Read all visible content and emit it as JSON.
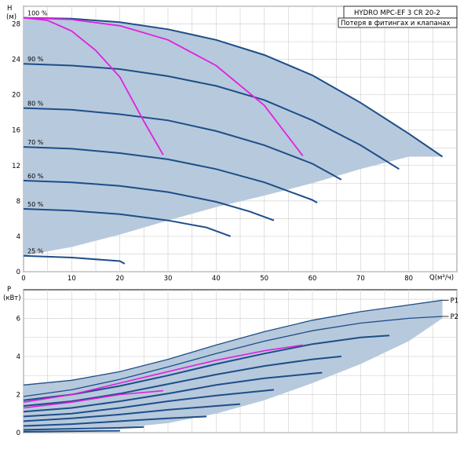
{
  "chart_data": [
    {
      "type": "line",
      "title": "HYDRO MPC-EF 3 CR 20-2",
      "legend": "Потеря в фитингах и клапанах",
      "legend_placement": "top-right",
      "ylabel_line1": "H",
      "ylabel_line2": "(м)",
      "xlabel": "Q(м³/ч)",
      "xlim": [
        0,
        90
      ],
      "ylim": [
        0,
        30
      ],
      "x_ticks": [
        0,
        10,
        20,
        30,
        40,
        50,
        60,
        70,
        80
      ],
      "y_ticks": [
        0,
        4,
        8,
        12,
        16,
        20,
        24,
        28
      ],
      "grid": true,
      "colors": {
        "curve": "#1d4e89",
        "loss": "#e020e0",
        "area": "#b7c9dc"
      },
      "envelope": [
        [
          0,
          1.8
        ],
        [
          10,
          2.8
        ],
        [
          20,
          4.2
        ],
        [
          30,
          5.8
        ],
        [
          40,
          7.3
        ],
        [
          50,
          8.6
        ],
        [
          60,
          10.0
        ],
        [
          70,
          11.6
        ],
        [
          80,
          13.0
        ],
        [
          87,
          13.0
        ],
        [
          80,
          15.6
        ],
        [
          70,
          19.1
        ],
        [
          60,
          22.2
        ],
        [
          50,
          24.5
        ],
        [
          40,
          26.2
        ],
        [
          30,
          27.4
        ],
        [
          20,
          28.2
        ],
        [
          10,
          28.6
        ],
        [
          0,
          28.7
        ]
      ],
      "series": [
        {
          "label": "100 %",
          "points": [
            [
              0,
              28.7
            ],
            [
              10,
              28.6
            ],
            [
              20,
              28.2
            ],
            [
              30,
              27.4
            ],
            [
              40,
              26.2
            ],
            [
              50,
              24.5
            ],
            [
              60,
              22.2
            ],
            [
              70,
              19.1
            ],
            [
              80,
              15.6
            ],
            [
              87,
              13.0
            ]
          ]
        },
        {
          "label": "90 %",
          "points": [
            [
              0,
              23.5
            ],
            [
              10,
              23.3
            ],
            [
              20,
              22.9
            ],
            [
              30,
              22.1
            ],
            [
              40,
              21.0
            ],
            [
              50,
              19.4
            ],
            [
              60,
              17.1
            ],
            [
              70,
              14.3
            ],
            [
              78,
              11.6
            ]
          ]
        },
        {
          "label": "80 %",
          "points": [
            [
              0,
              18.5
            ],
            [
              10,
              18.3
            ],
            [
              20,
              17.8
            ],
            [
              30,
              17.1
            ],
            [
              40,
              15.9
            ],
            [
              50,
              14.3
            ],
            [
              60,
              12.2
            ],
            [
              66,
              10.4
            ]
          ]
        },
        {
          "label": "70 %",
          "points": [
            [
              0,
              14.1
            ],
            [
              10,
              13.9
            ],
            [
              20,
              13.4
            ],
            [
              30,
              12.7
            ],
            [
              40,
              11.6
            ],
            [
              50,
              10.1
            ],
            [
              60,
              8.1
            ],
            [
              61,
              7.8
            ]
          ]
        },
        {
          "label": "60 %",
          "points": [
            [
              0,
              10.3
            ],
            [
              10,
              10.1
            ],
            [
              20,
              9.7
            ],
            [
              30,
              9.0
            ],
            [
              40,
              7.9
            ],
            [
              47,
              6.8
            ],
            [
              52,
              5.8
            ]
          ]
        },
        {
          "label": "50 %",
          "points": [
            [
              0,
              7.1
            ],
            [
              10,
              6.9
            ],
            [
              20,
              6.5
            ],
            [
              30,
              5.8
            ],
            [
              38,
              5.0
            ],
            [
              43,
              4.0
            ]
          ]
        },
        {
          "label": "25 %",
          "points": [
            [
              0,
              1.8
            ],
            [
              10,
              1.6
            ],
            [
              20,
              1.2
            ],
            [
              21,
              0.9
            ]
          ]
        }
      ],
      "loss_curves": [
        {
          "points": [
            [
              0,
              28.7
            ],
            [
              5,
              28.4
            ],
            [
              10,
              27.2
            ],
            [
              15,
              25.0
            ],
            [
              20,
              22.0
            ],
            [
              25,
              17.0
            ],
            [
              29,
              13.2
            ]
          ]
        },
        {
          "points": [
            [
              0,
              28.7
            ],
            [
              10,
              28.5
            ],
            [
              20,
              27.8
            ],
            [
              30,
              26.2
            ],
            [
              40,
              23.3
            ],
            [
              50,
              18.8
            ],
            [
              58,
              13.1
            ]
          ]
        }
      ]
    },
    {
      "type": "line",
      "ylabel_line1": "P",
      "ylabel_line2": "(кВт)",
      "xlim": [
        0,
        90
      ],
      "ylim": [
        0,
        7.5
      ],
      "y_ticks": [
        0,
        2,
        4,
        6
      ],
      "grid": true,
      "envelope": [
        [
          0,
          0.1
        ],
        [
          10,
          0.15
        ],
        [
          20,
          0.25
        ],
        [
          30,
          0.5
        ],
        [
          40,
          1.0
        ],
        [
          50,
          1.7
        ],
        [
          60,
          2.6
        ],
        [
          70,
          3.6
        ],
        [
          80,
          4.8
        ],
        [
          87,
          6.0
        ],
        [
          87,
          6.95
        ],
        [
          80,
          6.7
        ],
        [
          70,
          6.35
        ],
        [
          60,
          5.9
        ],
        [
          50,
          5.3
        ],
        [
          40,
          4.6
        ],
        [
          30,
          3.85
        ],
        [
          20,
          3.2
        ],
        [
          10,
          2.75
        ],
        [
          0,
          2.5
        ]
      ],
      "series": [
        {
          "label": "P1",
          "points": [
            [
              0,
              2.5
            ],
            [
              10,
              2.75
            ],
            [
              20,
              3.2
            ],
            [
              30,
              3.85
            ],
            [
              40,
              4.6
            ],
            [
              50,
              5.3
            ],
            [
              60,
              5.9
            ],
            [
              70,
              6.35
            ],
            [
              80,
              6.7
            ],
            [
              87,
              6.95
            ]
          ]
        },
        {
          "label": "P2",
          "points": [
            [
              0,
              1.9
            ],
            [
              10,
              2.25
            ],
            [
              20,
              2.8
            ],
            [
              30,
              3.45
            ],
            [
              40,
              4.15
            ],
            [
              50,
              4.8
            ],
            [
              60,
              5.35
            ],
            [
              70,
              5.75
            ],
            [
              80,
              6.0
            ],
            [
              87,
              6.1
            ]
          ]
        },
        {
          "points": [
            [
              0,
              1.7
            ],
            [
              10,
              2.0
            ],
            [
              20,
              2.45
            ],
            [
              30,
              3.0
            ],
            [
              40,
              3.6
            ],
            [
              50,
              4.15
            ],
            [
              60,
              4.65
            ],
            [
              70,
              5.0
            ],
            [
              76,
              5.1
            ]
          ]
        },
        {
          "points": [
            [
              0,
              1.4
            ],
            [
              10,
              1.65
            ],
            [
              20,
              2.05
            ],
            [
              30,
              2.55
            ],
            [
              40,
              3.05
            ],
            [
              50,
              3.5
            ],
            [
              60,
              3.85
            ],
            [
              66,
              4.0
            ]
          ]
        },
        {
          "points": [
            [
              0,
              1.1
            ],
            [
              10,
              1.3
            ],
            [
              20,
              1.65
            ],
            [
              30,
              2.05
            ],
            [
              40,
              2.5
            ],
            [
              50,
              2.85
            ],
            [
              60,
              3.1
            ],
            [
              62,
              3.15
            ]
          ]
        },
        {
          "points": [
            [
              0,
              0.85
            ],
            [
              10,
              1.0
            ],
            [
              20,
              1.3
            ],
            [
              30,
              1.65
            ],
            [
              40,
              1.95
            ],
            [
              50,
              2.2
            ],
            [
              52,
              2.25
            ]
          ]
        },
        {
          "points": [
            [
              0,
              0.6
            ],
            [
              10,
              0.75
            ],
            [
              20,
              0.95
            ],
            [
              30,
              1.2
            ],
            [
              40,
              1.4
            ],
            [
              45,
              1.5
            ]
          ]
        },
        {
          "points": [
            [
              0,
              0.35
            ],
            [
              10,
              0.45
            ],
            [
              20,
              0.6
            ],
            [
              30,
              0.75
            ],
            [
              38,
              0.85
            ]
          ]
        },
        {
          "points": [
            [
              0,
              0.15
            ],
            [
              10,
              0.2
            ],
            [
              20,
              0.25
            ],
            [
              25,
              0.3
            ]
          ]
        },
        {
          "points": [
            [
              0,
              0.05
            ],
            [
              10,
              0.08
            ],
            [
              20,
              0.1
            ]
          ]
        }
      ],
      "loss_curves": [
        {
          "points": [
            [
              0,
              1.6
            ],
            [
              10,
              2.0
            ],
            [
              20,
              2.6
            ],
            [
              30,
              3.2
            ],
            [
              40,
              3.8
            ],
            [
              50,
              4.3
            ],
            [
              58,
              4.6
            ]
          ]
        },
        {
          "points": [
            [
              0,
              1.3
            ],
            [
              10,
              1.6
            ],
            [
              20,
              2.0
            ],
            [
              29,
              2.2
            ]
          ]
        }
      ]
    }
  ]
}
